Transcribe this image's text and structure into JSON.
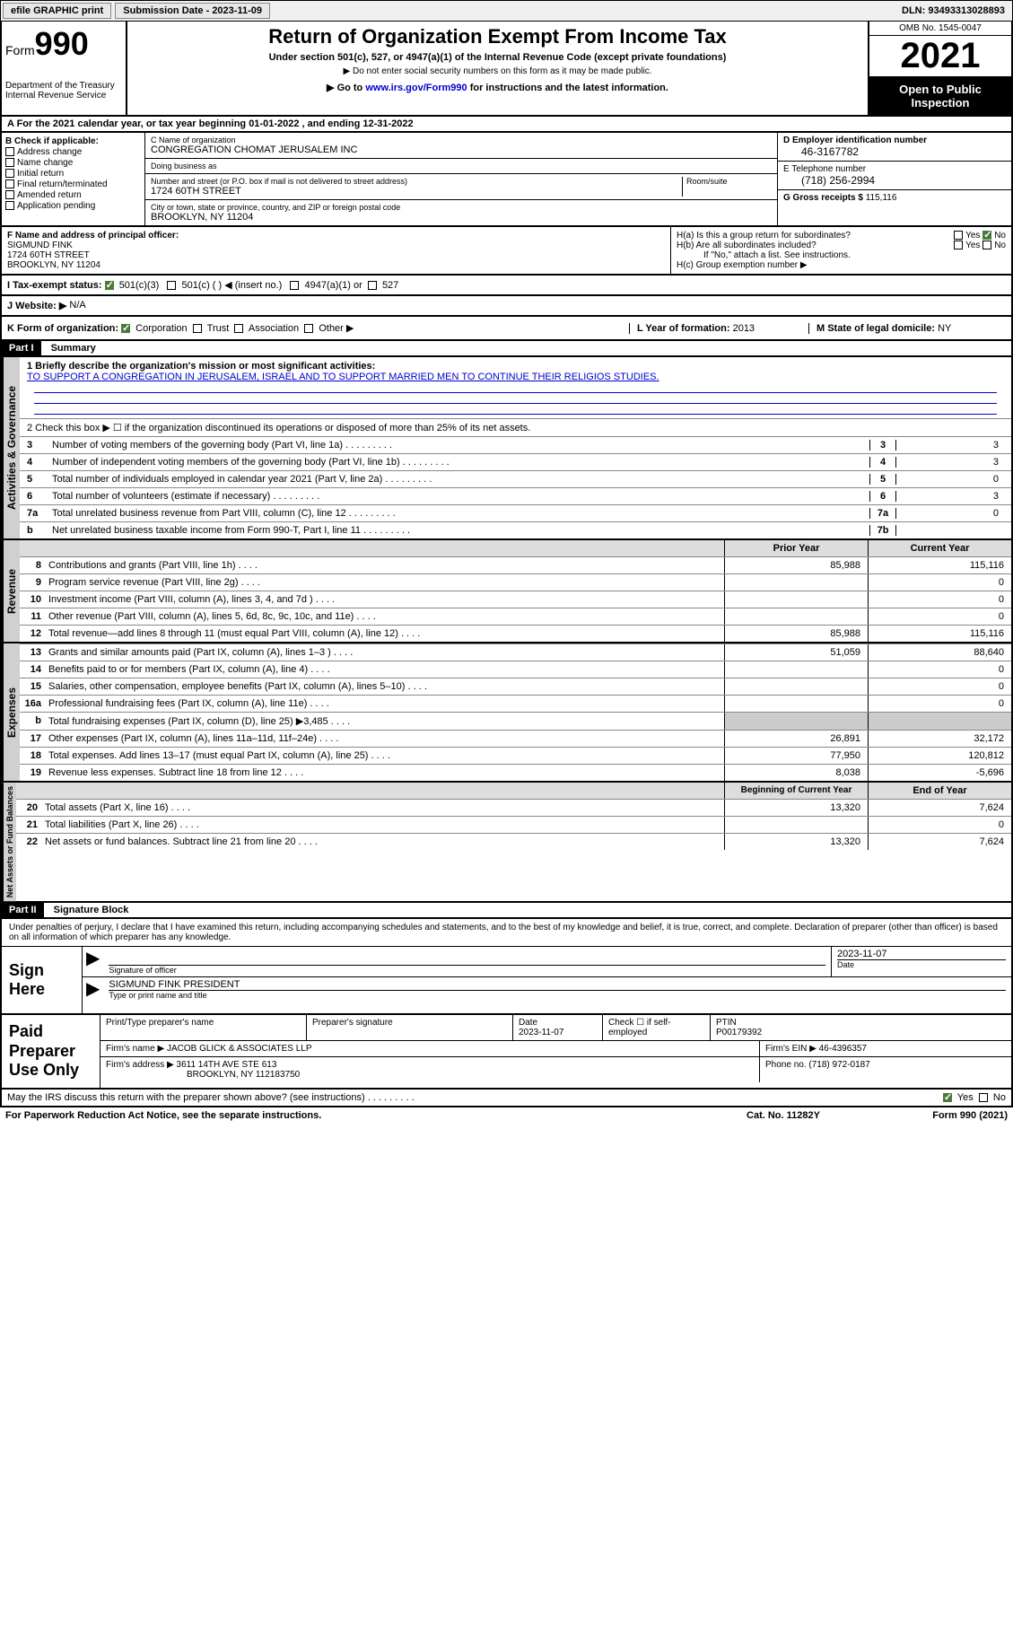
{
  "top_bar": {
    "efile": "efile GRAPHIC print",
    "submission": "Submission Date - 2023-11-09",
    "dln": "DLN: 93493313028893"
  },
  "header": {
    "form_label": "Form",
    "form_num": "990",
    "dept": "Department of the Treasury\nInternal Revenue Service",
    "title": "Return of Organization Exempt From Income Tax",
    "subtitle": "Under section 501(c), 527, or 4947(a)(1) of the Internal Revenue Code (except private foundations)",
    "note1": "▶ Do not enter social security numbers on this form as it may be made public.",
    "note2": "▶ Go to www.irs.gov/Form990 for instructions and the latest information.",
    "link_url": "www.irs.gov/Form990",
    "omb": "OMB No. 1545-0047",
    "year": "2021",
    "inspection": "Open to Public Inspection"
  },
  "row_a": "A For the 2021 calendar year, or tax year beginning 01-01-2022   , and ending 12-31-2022",
  "col_b": {
    "header": "B Check if applicable:",
    "items": [
      "Address change",
      "Name change",
      "Initial return",
      "Final return/terminated",
      "Amended return",
      "Application pending"
    ]
  },
  "col_c": {
    "name_label": "C Name of organization",
    "name": "CONGREGATION CHOMAT JERUSALEM INC",
    "dba_label": "Doing business as",
    "dba": "",
    "addr_label": "Number and street (or P.O. box if mail is not delivered to street address)",
    "room_label": "Room/suite",
    "addr": "1724 60TH STREET",
    "city_label": "City or town, state or province, country, and ZIP or foreign postal code",
    "city": "BROOKLYN, NY  11204"
  },
  "col_d": {
    "ein_label": "D Employer identification number",
    "ein": "46-3167782",
    "phone_label": "E Telephone number",
    "phone": "(718) 256-2994",
    "gross_label": "G Gross receipts $",
    "gross": "115,116"
  },
  "section_f": {
    "label": "F  Name and address of principal officer:",
    "name": "SIGMUND FINK",
    "addr": "1724 60TH STREET",
    "city": "BROOKLYN, NY  11204"
  },
  "section_h": {
    "ha": "H(a)  Is this a group return for subordinates?",
    "hb": "H(b)  Are all subordinates included?",
    "hb_note": "If \"No,\" attach a list. See instructions.",
    "hc": "H(c)  Group exemption number ▶"
  },
  "row_i": {
    "label": "I   Tax-exempt status:",
    "opts": [
      "501(c)(3)",
      "501(c) (  ) ◀ (insert no.)",
      "4947(a)(1) or",
      "527"
    ]
  },
  "row_j": {
    "label": "J   Website: ▶",
    "val": "N/A"
  },
  "row_k": {
    "label": "K Form of organization:",
    "opts": [
      "Corporation",
      "Trust",
      "Association",
      "Other ▶"
    ],
    "l_label": "L Year of formation:",
    "l_val": "2013",
    "m_label": "M State of legal domicile:",
    "m_val": "NY"
  },
  "part1": {
    "header": "Part I",
    "title": "Summary",
    "line1_label": "1  Briefly describe the organization's mission or most significant activities:",
    "mission": "TO SUPPORT A CONGREGATION IN JERUSALEM, ISRAEL AND TO SUPPORT MARRIED MEN TO CONTINUE THEIR RELIGIOS STUDIES.",
    "line2": "2   Check this box ▶ ☐  if the organization discontinued its operations or disposed of more than 25% of its net assets.",
    "lines_gov": [
      {
        "n": "3",
        "t": "Number of voting members of the governing body (Part VI, line 1a)",
        "box": "3",
        "v": "3"
      },
      {
        "n": "4",
        "t": "Number of independent voting members of the governing body (Part VI, line 1b)",
        "box": "4",
        "v": "3"
      },
      {
        "n": "5",
        "t": "Total number of individuals employed in calendar year 2021 (Part V, line 2a)",
        "box": "5",
        "v": "0"
      },
      {
        "n": "6",
        "t": "Total number of volunteers (estimate if necessary)",
        "box": "6",
        "v": "3"
      },
      {
        "n": "7a",
        "t": "Total unrelated business revenue from Part VIII, column (C), line 12",
        "box": "7a",
        "v": "0"
      },
      {
        "n": "b",
        "t": "Net unrelated business taxable income from Form 990-T, Part I, line 11",
        "box": "7b",
        "v": ""
      }
    ],
    "prior_hdr": "Prior Year",
    "curr_hdr": "Current Year",
    "revenue": [
      {
        "n": "8",
        "t": "Contributions and grants (Part VIII, line 1h)",
        "p": "85,988",
        "c": "115,116"
      },
      {
        "n": "9",
        "t": "Program service revenue (Part VIII, line 2g)",
        "p": "",
        "c": "0"
      },
      {
        "n": "10",
        "t": "Investment income (Part VIII, column (A), lines 3, 4, and 7d )",
        "p": "",
        "c": "0"
      },
      {
        "n": "11",
        "t": "Other revenue (Part VIII, column (A), lines 5, 6d, 8c, 9c, 10c, and 11e)",
        "p": "",
        "c": "0"
      },
      {
        "n": "12",
        "t": "Total revenue—add lines 8 through 11 (must equal Part VIII, column (A), line 12)",
        "p": "85,988",
        "c": "115,116"
      }
    ],
    "expenses": [
      {
        "n": "13",
        "t": "Grants and similar amounts paid (Part IX, column (A), lines 1–3 )",
        "p": "51,059",
        "c": "88,640"
      },
      {
        "n": "14",
        "t": "Benefits paid to or for members (Part IX, column (A), line 4)",
        "p": "",
        "c": "0"
      },
      {
        "n": "15",
        "t": "Salaries, other compensation, employee benefits (Part IX, column (A), lines 5–10)",
        "p": "",
        "c": "0"
      },
      {
        "n": "16a",
        "t": "Professional fundraising fees (Part IX, column (A), line 11e)",
        "p": "",
        "c": "0"
      },
      {
        "n": "b",
        "t": "Total fundraising expenses (Part IX, column (D), line 25) ▶3,485",
        "p": "shaded",
        "c": "shaded"
      },
      {
        "n": "17",
        "t": "Other expenses (Part IX, column (A), lines 11a–11d, 11f–24e)",
        "p": "26,891",
        "c": "32,172"
      },
      {
        "n": "18",
        "t": "Total expenses. Add lines 13–17 (must equal Part IX, column (A), line 25)",
        "p": "77,950",
        "c": "120,812"
      },
      {
        "n": "19",
        "t": "Revenue less expenses. Subtract line 18 from line 12",
        "p": "8,038",
        "c": "-5,696"
      }
    ],
    "begin_hdr": "Beginning of Current Year",
    "end_hdr": "End of Year",
    "netassets": [
      {
        "n": "20",
        "t": "Total assets (Part X, line 16)",
        "p": "13,320",
        "c": "7,624"
      },
      {
        "n": "21",
        "t": "Total liabilities (Part X, line 26)",
        "p": "",
        "c": "0"
      },
      {
        "n": "22",
        "t": "Net assets or fund balances. Subtract line 21 from line 20",
        "p": "13,320",
        "c": "7,624"
      }
    ]
  },
  "part2": {
    "header": "Part II",
    "title": "Signature Block",
    "declare": "Under penalties of perjury, I declare that I have examined this return, including accompanying schedules and statements, and to the best of my knowledge and belief, it is true, correct, and complete. Declaration of preparer (other than officer) is based on all information of which preparer has any knowledge.",
    "sign_here": "Sign Here",
    "sig_label": "Signature of officer",
    "date_label": "Date",
    "sig_date": "2023-11-07",
    "officer": "SIGMUND FINK  PRESIDENT",
    "officer_label": "Type or print name and title",
    "paid_label": "Paid Preparer Use Only",
    "prep_name_label": "Print/Type preparer's name",
    "prep_sig_label": "Preparer's signature",
    "prep_date_label": "Date",
    "prep_date": "2023-11-07",
    "check_label": "Check ☐ if self-employed",
    "ptin_label": "PTIN",
    "ptin": "P00179392",
    "firm_name_label": "Firm's name    ▶",
    "firm_name": "JACOB GLICK & ASSOCIATES LLP",
    "firm_ein_label": "Firm's EIN ▶",
    "firm_ein": "46-4396357",
    "firm_addr_label": "Firm's address ▶",
    "firm_addr": "3611 14TH AVE STE 613",
    "firm_city": "BROOKLYN, NY  112183750",
    "firm_phone_label": "Phone no.",
    "firm_phone": "(718) 972-0187",
    "discuss": "May the IRS discuss this return with the preparer shown above? (see instructions)",
    "paperwork": "For Paperwork Reduction Act Notice, see the separate instructions.",
    "catno": "Cat. No. 11282Y",
    "formfoot": "Form 990 (2021)"
  },
  "vtabs": {
    "gov": "Activities & Governance",
    "rev": "Revenue",
    "exp": "Expenses",
    "net": "Net Assets or Fund Balances"
  }
}
